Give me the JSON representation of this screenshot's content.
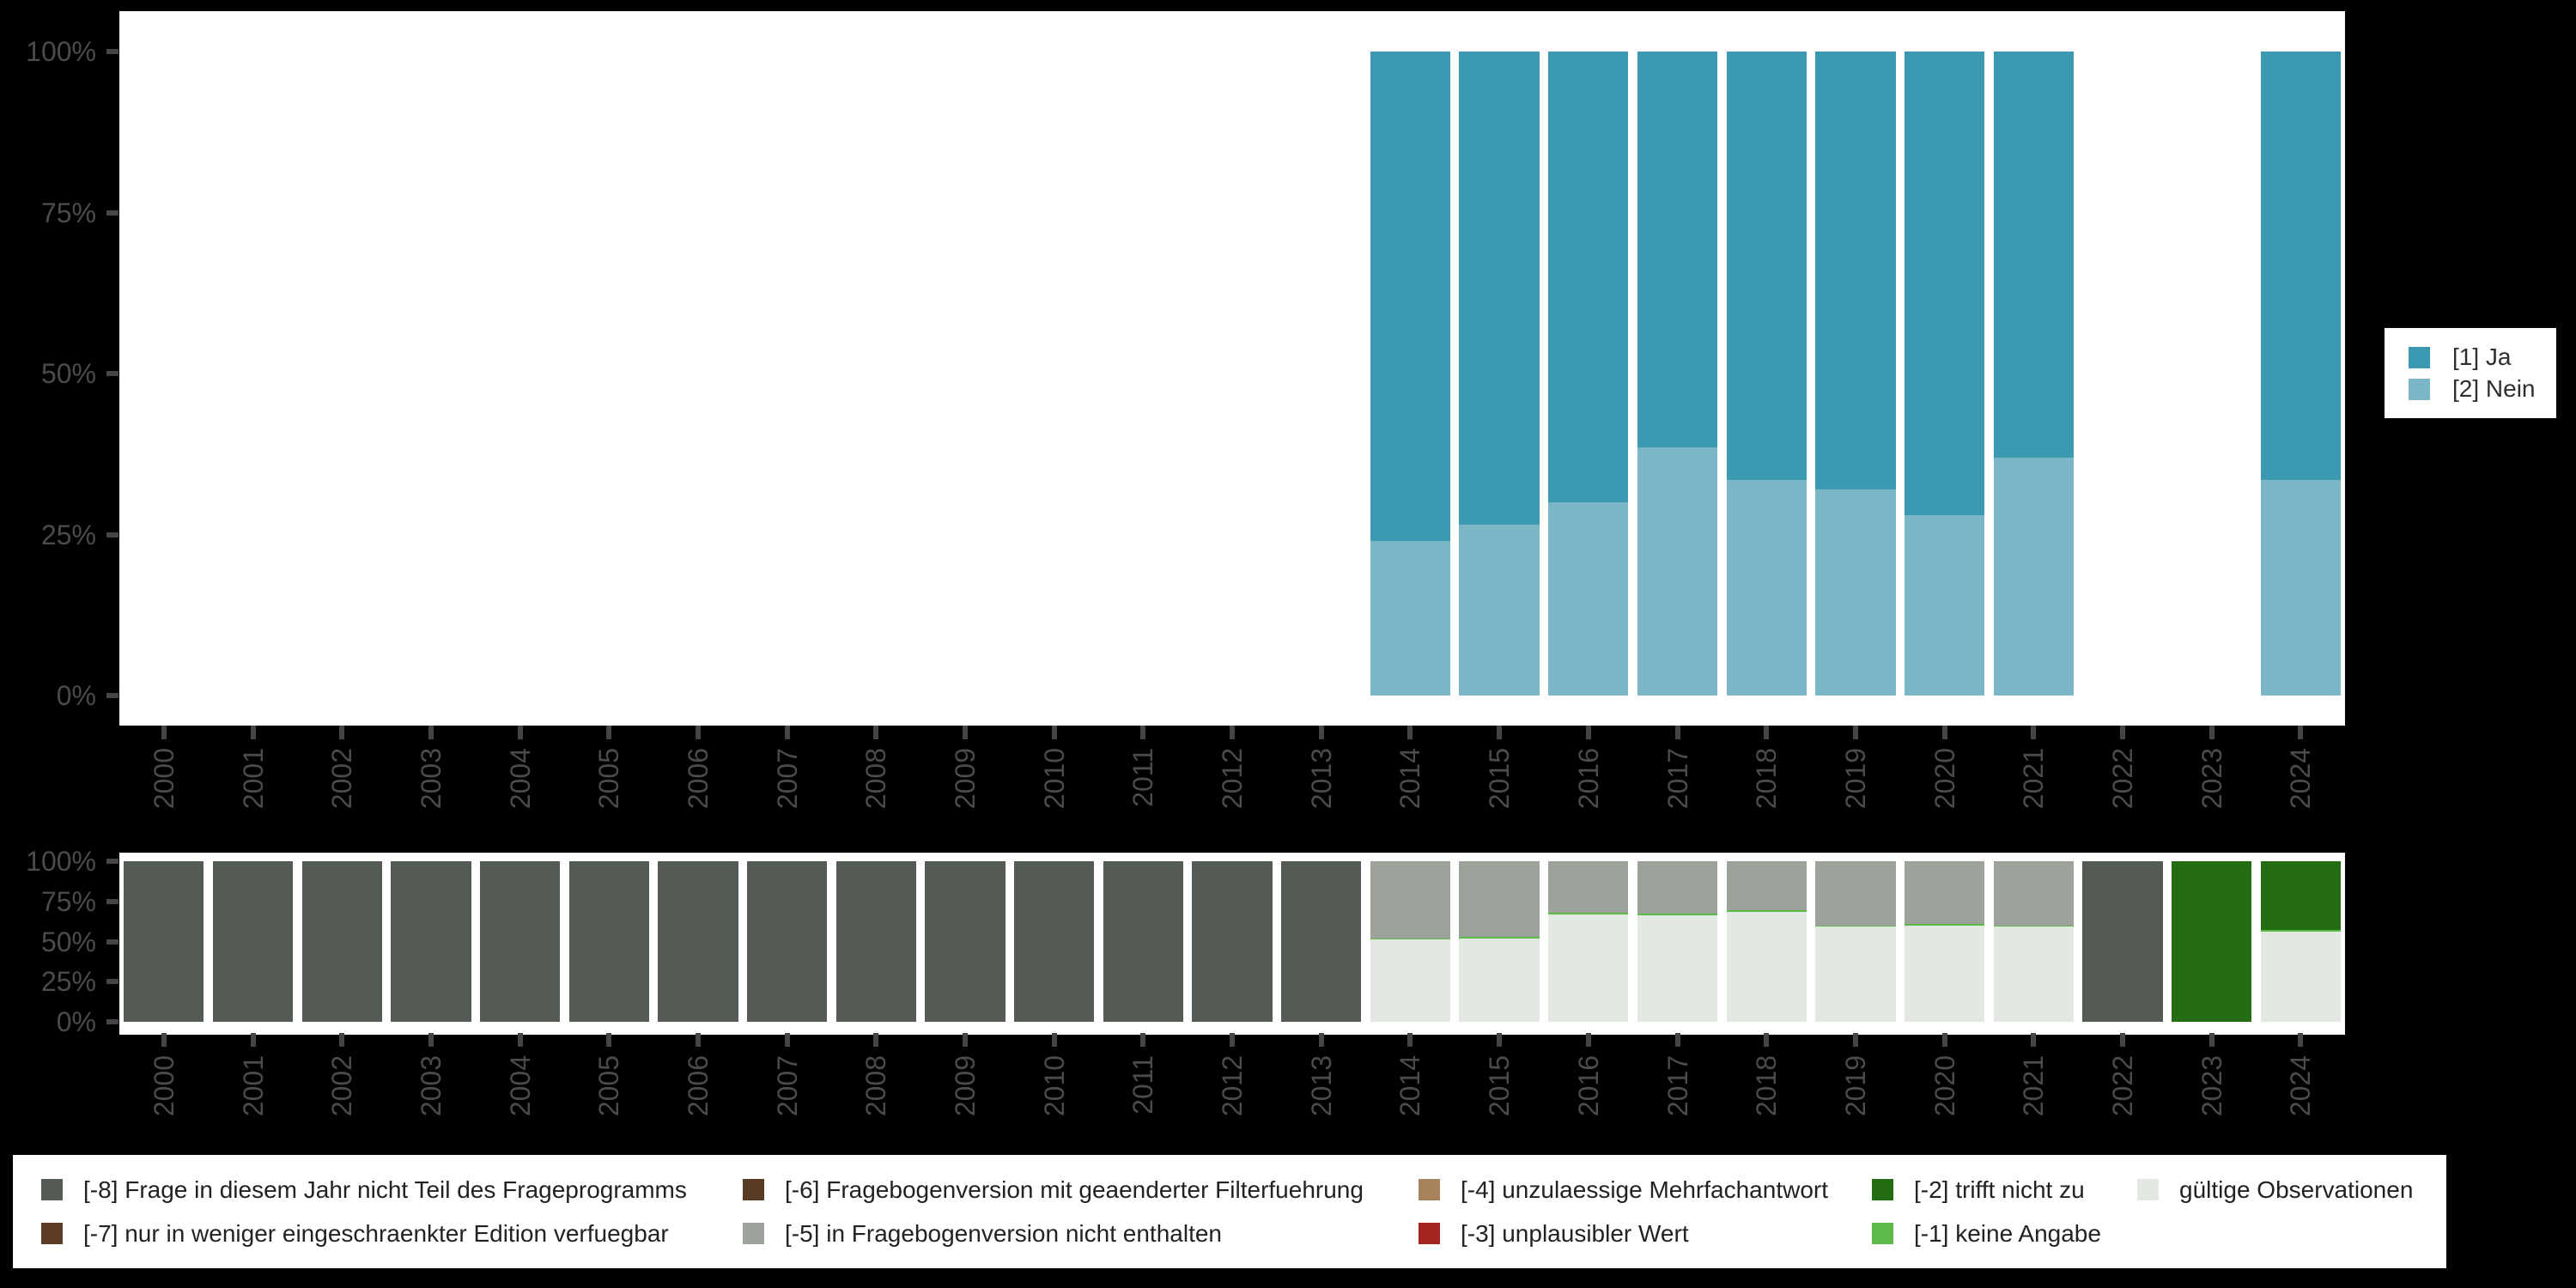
{
  "palette": {
    "ja": "#3b9ab2",
    "nein": "#7ab6c6",
    "m8": "#535b54",
    "m7": "#5d3c25",
    "m6": "#593a22",
    "m5": "#9da39b",
    "m4": "#a6825d",
    "m3": "#a62421",
    "m2": "#256d12",
    "m1": "#5cba49",
    "valid": "#e3e8e2",
    "axis_text": "#4b4b4b",
    "tick": "#454545",
    "plot_background": "#ffffff",
    "page_background": "#000000"
  },
  "axes": {
    "y_ticks": [
      "100%",
      "75%",
      "50%",
      "25%",
      "0%"
    ]
  },
  "top_legend": {
    "items": [
      {
        "label": "[1] Ja",
        "color_key": "ja"
      },
      {
        "label": "[2] Nein",
        "color_key": "nein"
      }
    ]
  },
  "bottom_legend": {
    "columns": [
      {
        "items": [
          {
            "label": "[-8] Frage in diesem Jahr nicht Teil des Frageprogramms",
            "color_key": "m8"
          },
          {
            "label": "[-7] nur in weniger eingeschraenkter Edition verfuegbar",
            "color_key": "m7"
          }
        ]
      },
      {
        "items": [
          {
            "label": "[-6] Fragebogenversion mit geaenderter Filterfuehrung",
            "color_key": "m6"
          },
          {
            "label": "[-5] in Fragebogenversion nicht enthalten",
            "color_key": "m5"
          }
        ]
      },
      {
        "items": [
          {
            "label": "[-4] unzulaessige Mehrfachantwort",
            "color_key": "m4"
          },
          {
            "label": "[-3] unplausibler Wert",
            "color_key": "m3"
          }
        ]
      },
      {
        "items": [
          {
            "label": "[-2] trifft nicht zu",
            "color_key": "m2"
          },
          {
            "label": "[-1] keine Angabe",
            "color_key": "m1"
          }
        ]
      },
      {
        "items": [
          {
            "label": "gültige Observationen",
            "color_key": "valid"
          }
        ]
      }
    ]
  },
  "chart_data": [
    {
      "id": "responses",
      "type": "bar",
      "stacked": true,
      "title": "",
      "xlabel": "",
      "ylabel": "",
      "ylim": [
        0,
        100
      ],
      "y_tick_labels": [
        "0%",
        "25%",
        "50%",
        "75%",
        "100%"
      ],
      "legend_position": "right",
      "grid": false,
      "categories": [
        "2000",
        "2001",
        "2002",
        "2003",
        "2004",
        "2005",
        "2006",
        "2007",
        "2008",
        "2009",
        "2010",
        "2011",
        "2012",
        "2013",
        "2014",
        "2015",
        "2016",
        "2017",
        "2018",
        "2019",
        "2020",
        "2021",
        "2022",
        "2023",
        "2024"
      ],
      "series": [
        {
          "name": "[1] Ja",
          "color_key": "ja",
          "values": [
            null,
            null,
            null,
            null,
            null,
            null,
            null,
            null,
            null,
            null,
            null,
            null,
            null,
            null,
            76,
            73.5,
            70,
            61.5,
            66.5,
            68,
            72,
            63,
            null,
            null,
            66.5
          ]
        },
        {
          "name": "[2] Nein",
          "color_key": "nein",
          "values": [
            null,
            null,
            null,
            null,
            null,
            null,
            null,
            null,
            null,
            null,
            null,
            null,
            null,
            null,
            24,
            26.5,
            30,
            38.5,
            33.5,
            32,
            28,
            37,
            null,
            null,
            33.5
          ]
        }
      ]
    },
    {
      "id": "missings",
      "type": "bar",
      "stacked": true,
      "title": "",
      "xlabel": "",
      "ylabel": "",
      "ylim": [
        0,
        100
      ],
      "y_tick_labels": [
        "0%",
        "25%",
        "50%",
        "75%",
        "100%"
      ],
      "legend_position": "bottom",
      "grid": false,
      "categories": [
        "2000",
        "2001",
        "2002",
        "2003",
        "2004",
        "2005",
        "2006",
        "2007",
        "2008",
        "2009",
        "2010",
        "2011",
        "2012",
        "2013",
        "2014",
        "2015",
        "2016",
        "2017",
        "2018",
        "2019",
        "2020",
        "2021",
        "2022",
        "2023",
        "2024"
      ],
      "series": [
        {
          "name": "[-8] Frage in diesem Jahr nicht Teil des Frageprogramms",
          "color_key": "m8",
          "values": [
            100,
            100,
            100,
            100,
            100,
            100,
            100,
            100,
            100,
            100,
            100,
            100,
            100,
            100,
            0,
            0,
            0,
            0,
            0,
            0,
            0,
            0,
            100,
            0,
            0
          ]
        },
        {
          "name": "[-7] nur in weniger eingeschraenkter Edition verfuegbar",
          "color_key": "m7",
          "values": [
            0,
            0,
            0,
            0,
            0,
            0,
            0,
            0,
            0,
            0,
            0,
            0,
            0,
            0,
            0,
            0,
            0,
            0,
            0,
            0,
            0,
            0,
            0,
            0,
            0
          ]
        },
        {
          "name": "[-6] Fragebogenversion mit geaenderter Filterfuehrung",
          "color_key": "m6",
          "values": [
            0,
            0,
            0,
            0,
            0,
            0,
            0,
            0,
            0,
            0,
            0,
            0,
            0,
            0,
            0,
            0,
            0,
            0,
            0,
            0,
            0,
            0,
            0,
            0,
            0
          ]
        },
        {
          "name": "[-5] in Fragebogenversion nicht enthalten",
          "color_key": "m5",
          "values": [
            0,
            0,
            0,
            0,
            0,
            0,
            0,
            0,
            0,
            0,
            0,
            0,
            0,
            0,
            48,
            47,
            32.5,
            33,
            30.5,
            40,
            39,
            40,
            0,
            0,
            0
          ]
        },
        {
          "name": "[-4] unzulaessige Mehrfachantwort",
          "color_key": "m4",
          "values": [
            0,
            0,
            0,
            0,
            0,
            0,
            0,
            0,
            0,
            0,
            0,
            0,
            0,
            0,
            0,
            0,
            0,
            0,
            0,
            0,
            0,
            0,
            0,
            0,
            0
          ]
        },
        {
          "name": "[-3] unplausibler Wert",
          "color_key": "m3",
          "values": [
            0,
            0,
            0,
            0,
            0,
            0,
            0,
            0,
            0,
            0,
            0,
            0,
            0,
            0,
            0,
            0,
            0,
            0,
            0,
            0,
            0,
            0,
            0,
            0,
            0
          ]
        },
        {
          "name": "[-2] trifft nicht zu",
          "color_key": "m2",
          "values": [
            0,
            0,
            0,
            0,
            0,
            0,
            0,
            0,
            0,
            0,
            0,
            0,
            0,
            0,
            0,
            0,
            0,
            0,
            0,
            0,
            0,
            0,
            0,
            100,
            43
          ]
        },
        {
          "name": "[-1] keine Angabe",
          "color_key": "m1",
          "values": [
            0,
            0,
            0,
            0,
            0,
            0,
            0,
            0,
            0,
            0,
            0,
            0,
            0,
            0,
            1,
            1,
            1,
            1,
            1,
            1,
            1,
            1,
            0,
            0,
            1
          ]
        },
        {
          "name": "gültige Observationen",
          "color_key": "valid",
          "values": [
            0,
            0,
            0,
            0,
            0,
            0,
            0,
            0,
            0,
            0,
            0,
            0,
            0,
            0,
            51,
            52,
            66.5,
            66,
            68.5,
            59,
            60,
            59,
            0,
            0,
            56
          ]
        }
      ]
    }
  ]
}
